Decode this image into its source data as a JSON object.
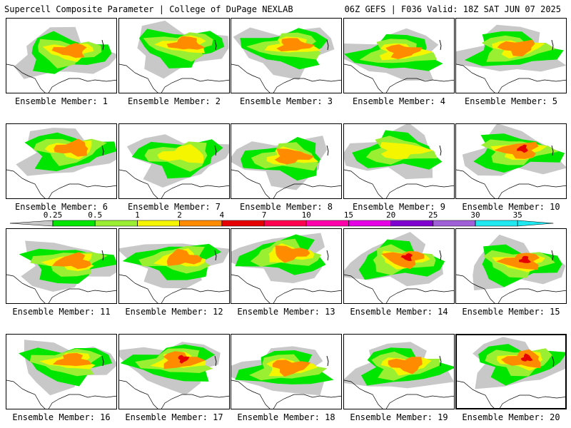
{
  "header": {
    "left_title": "Supercell Composite Parameter | College of DuPage NEXLAB",
    "right_title": "06Z GEFS | F036 Valid: 18Z SAT JUN 07 2025"
  },
  "colorbar": {
    "levels": [
      {
        "label": "0.25",
        "color": "#c8c8c8"
      },
      {
        "label": "0.5",
        "color": "#00e600"
      },
      {
        "label": "1",
        "color": "#9aef33"
      },
      {
        "label": "2",
        "color": "#f5f500"
      },
      {
        "label": "4",
        "color": "#ff8c00"
      },
      {
        "label": "7",
        "color": "#e60000"
      },
      {
        "label": "10",
        "color": "#ff0050"
      },
      {
        "label": "15",
        "color": "#ff00aa"
      },
      {
        "label": "20",
        "color": "#e600e6"
      },
      {
        "label": "25",
        "color": "#8000d0"
      },
      {
        "label": "30",
        "color": "#a060d8"
      },
      {
        "label": "35",
        "color": "#20e8f0"
      }
    ]
  },
  "members": [
    {
      "label": "Ensemble Member: 1",
      "intensity": 3
    },
    {
      "label": "Ensemble Member: 2",
      "intensity": 3
    },
    {
      "label": "Ensemble Member: 3",
      "intensity": 3
    },
    {
      "label": "Ensemble Member: 4",
      "intensity": 3
    },
    {
      "label": "Ensemble Member: 5",
      "intensity": 4
    },
    {
      "label": "Ensemble Member: 6",
      "intensity": 4
    },
    {
      "label": "Ensemble Member: 7",
      "intensity": 2
    },
    {
      "label": "Ensemble Member: 8",
      "intensity": 4
    },
    {
      "label": "Ensemble Member: 9",
      "intensity": 2
    },
    {
      "label": "Ensemble Member: 10",
      "intensity": 5
    },
    {
      "label": "Ensemble Member: 11",
      "intensity": 4
    },
    {
      "label": "Ensemble Member: 12",
      "intensity": 4
    },
    {
      "label": "Ensemble Member: 13",
      "intensity": 4
    },
    {
      "label": "Ensemble Member: 14",
      "intensity": 5
    },
    {
      "label": "Ensemble Member: 15",
      "intensity": 5
    },
    {
      "label": "Ensemble Member: 16",
      "intensity": 3
    },
    {
      "label": "Ensemble Member: 17",
      "intensity": 5
    },
    {
      "label": "Ensemble Member: 18",
      "intensity": 4
    },
    {
      "label": "Ensemble Member: 19",
      "intensity": 4
    },
    {
      "label": "Ensemble Member: 20",
      "intensity": 5
    }
  ],
  "selected_member": 20
}
